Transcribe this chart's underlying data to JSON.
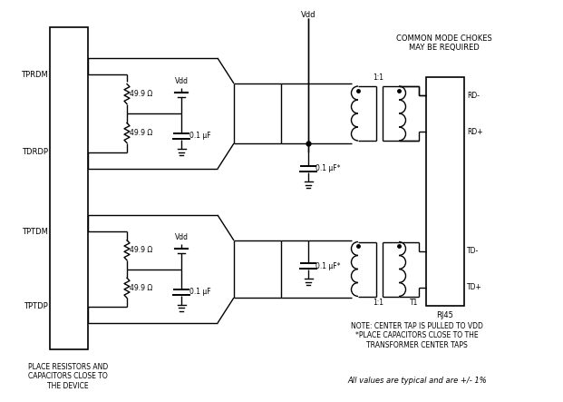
{
  "bg_color": "#ffffff",
  "line_color": "#000000",
  "fig_width": 6.21,
  "fig_height": 4.43,
  "dpi": 100,
  "annotations": {
    "common_mode": "COMMON MODE CHOKES\nMAY BE REQUIRED",
    "note": "NOTE: CENTER TAP IS PULLED TO VDD\n*PLACE CAPACITORS CLOSE TO THE\nTRANSFORMER CENTER TAPS",
    "all_values": "All values are typical and are +/- 1%",
    "place_resistors": "PLACE RESISTORS AND\nCAPACITORS CLOSE TO\nTHE DEVICE",
    "vdd_top": "Vdd",
    "vdd1": "Vdd",
    "vdd2": "Vdd",
    "ratio1": "1:1",
    "ratio2": "1:1",
    "t1": "T1",
    "rj45": "RJ45",
    "tprdm": "TPRDM",
    "tdrdp": "TDRDP",
    "tptdm": "TPTDM",
    "tptdp": "TPTDP",
    "rd_minus": "RD-",
    "rd_plus": "RD+",
    "td_minus": "TD-",
    "td_plus": "TD+",
    "res1": "49.9 Ω",
    "res2": "49.9 Ω",
    "res3": "49.9 Ω",
    "res4": "49.9 Ω",
    "cap1": "0.1 μF",
    "cap2": "0.1 μF",
    "cap3": "0.1 μF*",
    "cap4": "0.1 μF*"
  }
}
